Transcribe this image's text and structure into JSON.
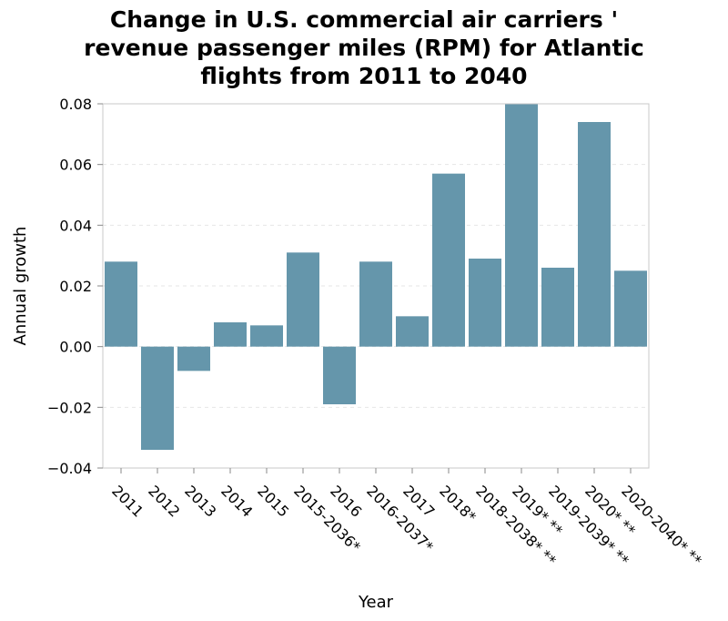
{
  "chart_data": {
    "type": "bar",
    "title_lines": [
      "Change in U.S. commercial air carriers '",
      "revenue passenger miles (RPM) for Atlantic",
      "flights from 2011 to 2040"
    ],
    "xlabel": "Year",
    "ylabel": "Annual growth",
    "categories": [
      "2011",
      "2012",
      "2013",
      "2014",
      "2015",
      "2015-2036*",
      "2016",
      "2016-2037*",
      "2017",
      "2018*",
      "2018-2038* **",
      "2019* **",
      "2019-2039* **",
      "2020* **",
      "2020-2040* **"
    ],
    "values": [
      0.028,
      -0.034,
      -0.008,
      0.008,
      0.007,
      0.031,
      -0.019,
      0.028,
      0.01,
      0.057,
      0.029,
      0.08,
      0.026,
      0.074,
      0.025
    ],
    "ylim": [
      -0.04,
      0.08
    ],
    "yticks": [
      -0.04,
      -0.02,
      0.0,
      0.02,
      0.04,
      0.06,
      0.08
    ],
    "ytick_labels": [
      "−0.04",
      "−0.02",
      "0.00",
      "0.02",
      "0.04",
      "0.06",
      "0.08"
    ],
    "grid": true,
    "bar_color": "#6596ab"
  }
}
